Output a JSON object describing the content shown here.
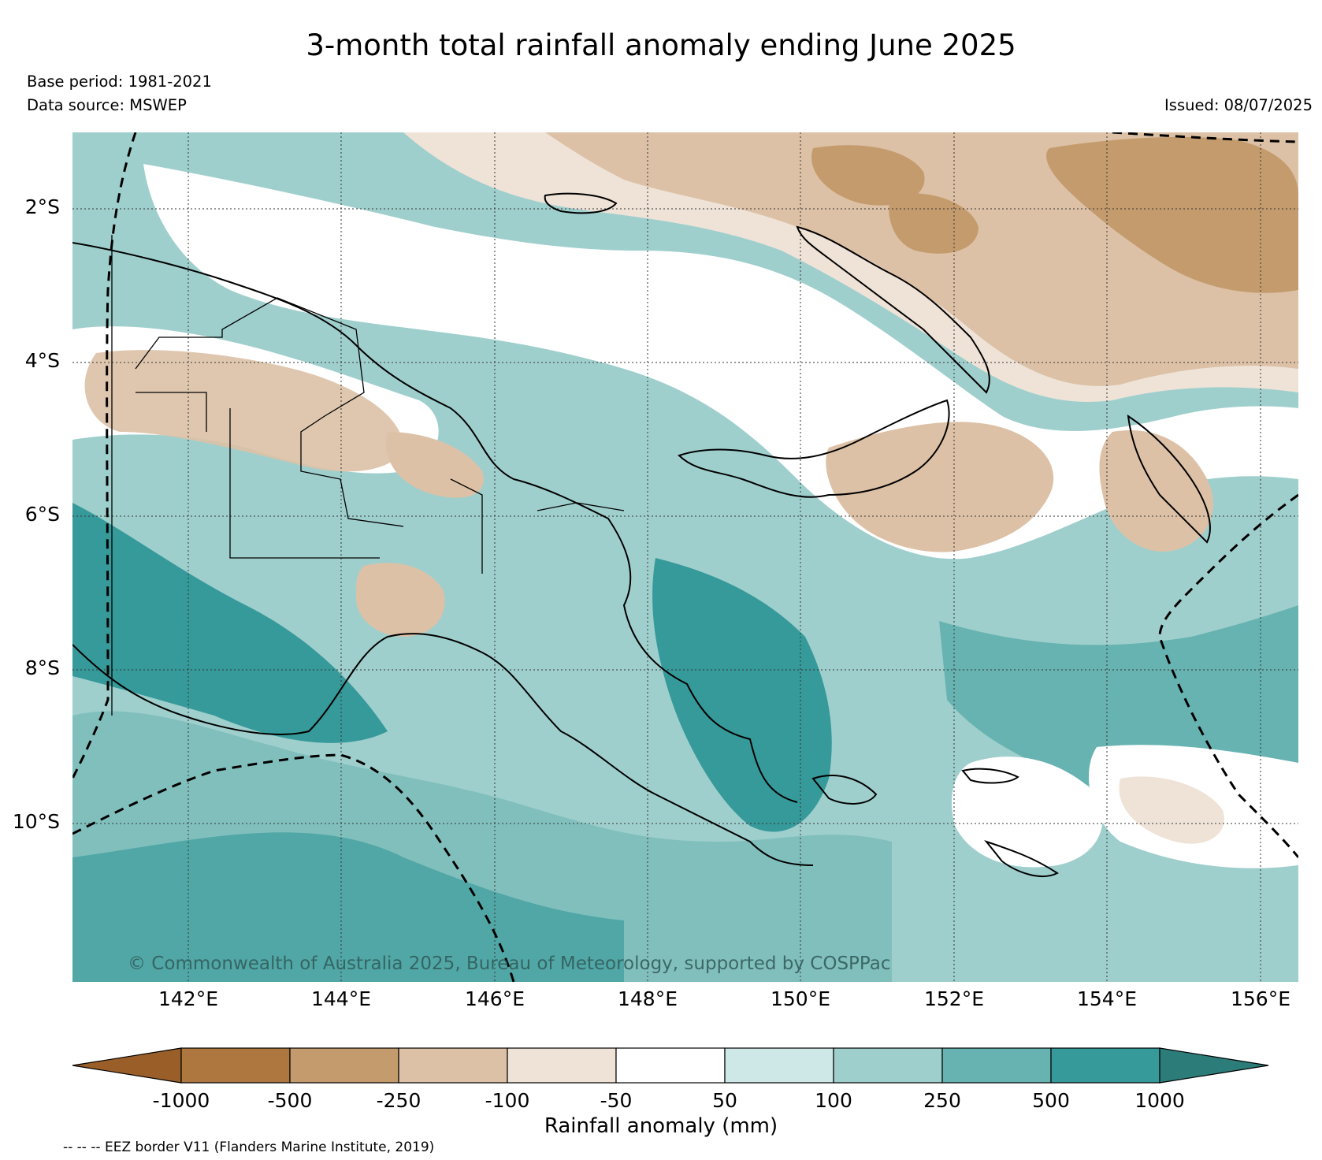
{
  "header": {
    "title": "3-month total rainfall anomaly ending June 2025",
    "base_period": "Base period: 1981-2021",
    "data_source": "Data source: MSWEP",
    "issued": "Issued: 08/07/2025"
  },
  "map": {
    "latitude_labels": [
      "2°S",
      "4°S",
      "6°S",
      "8°S",
      "10°S"
    ],
    "longitude_labels": [
      "142°E",
      "144°E",
      "146°E",
      "148°E",
      "150°E",
      "152°E",
      "154°E",
      "156°E"
    ],
    "copyright": "© Commonwealth of Australia 2025, Bureau of Meteorology, supported by COSPPac",
    "colors": {
      "background": "#9fcfcd",
      "teal_light": "#cde8e6",
      "teal_mid": "#9fcfcd",
      "teal": "#67b3b1",
      "teal_dark": "#36999a",
      "brown_pale": "#efe3d8",
      "brown_light": "#dcc1a6",
      "brown_mid": "#c49b6d",
      "white": "#ffffff"
    }
  },
  "colorbar": {
    "label": "Rainfall anomaly (mm)",
    "ticks": [
      "-1000",
      "-500",
      "-250",
      "-100",
      "-50",
      "50",
      "100",
      "250",
      "500",
      "1000"
    ],
    "colors": [
      "#9a5f29",
      "#ad773f",
      "#c49b6d",
      "#dcc1a6",
      "#efe3d8",
      "#ffffff",
      "#cde8e6",
      "#9fcfcd",
      "#67b3b1",
      "#36999a",
      "#2c7c7a"
    ]
  },
  "legend": {
    "eez_note": "-- -- -- EEZ border V11 (Flanders Marine Institute, 2019)"
  }
}
